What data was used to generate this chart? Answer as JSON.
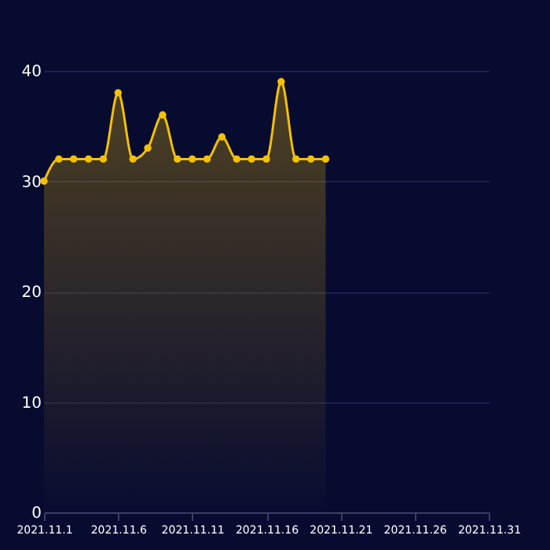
{
  "chart_data": {
    "type": "area",
    "categories": [
      "2021.11.1",
      null,
      null,
      null,
      null,
      "2021.11.6",
      null,
      null,
      null,
      null,
      "2021.11.11",
      null,
      null,
      null,
      null,
      "2021.11.16",
      null,
      null,
      null,
      null,
      "2021.11.21",
      null,
      null,
      null,
      null,
      "2021.11.26",
      null,
      null,
      null,
      null,
      "2021.11.31"
    ],
    "series": [
      {
        "color": "#f5c000",
        "values": [
          30,
          32,
          32,
          32,
          32,
          38,
          32,
          33,
          36,
          32,
          32,
          32,
          34,
          32,
          32,
          32,
          39,
          32,
          32,
          32,
          null,
          null,
          null,
          null,
          null,
          null,
          null,
          null,
          null,
          null,
          null
        ]
      }
    ],
    "ylim": [
      0,
      40
    ],
    "yticks": [
      0,
      10,
      20,
      30,
      40
    ],
    "grid": "y",
    "marker": "circle",
    "line_style": "solid"
  }
}
